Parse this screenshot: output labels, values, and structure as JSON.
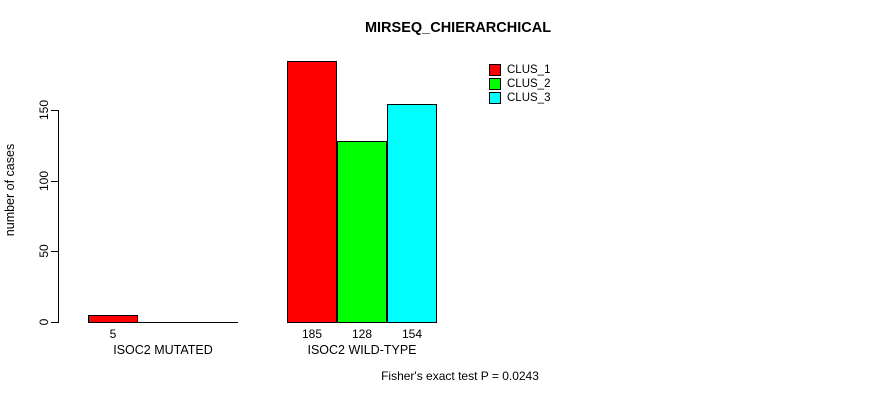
{
  "chart_data": {
    "type": "bar",
    "title": "MIRSEQ_CHIERARCHICAL",
    "ylabel": "number of cases",
    "xlabel": "",
    "categories": [
      "ISOC2 MUTATED",
      "ISOC2 WILD-TYPE"
    ],
    "series": [
      {
        "name": "CLUS_1",
        "color": "#ff0000",
        "values": [
          5,
          185
        ]
      },
      {
        "name": "CLUS_2",
        "color": "#00ff00",
        "values": [
          0,
          128
        ]
      },
      {
        "name": "CLUS_3",
        "color": "#00ffff",
        "values": [
          0,
          154
        ]
      }
    ],
    "value_labels": [
      [
        "5",
        "",
        ""
      ],
      [
        "185",
        "128",
        "154"
      ]
    ],
    "yticks": [
      0,
      50,
      100,
      150
    ],
    "ylim": [
      0,
      150
    ],
    "grid": false,
    "legend_position": "top-right",
    "bar_border_color": "#000000",
    "axis_color": "#000000",
    "footnote": "Fisher's exact test P = 0.0243"
  }
}
